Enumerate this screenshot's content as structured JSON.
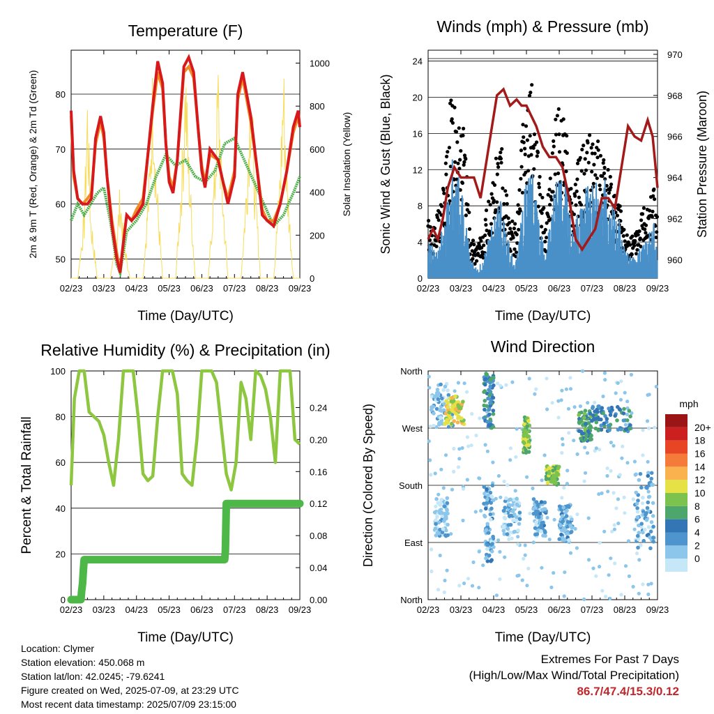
{
  "chart_data": [
    {
      "type": "line",
      "title": "Temperature (F)",
      "xlabel": "Time (Day/UTC)",
      "ylabel": "2m & 9m T (Red, Orange) & 2m Td (Green)",
      "y2label": "Solar Insolation (Yellow)",
      "x_ticks": [
        "02/23",
        "03/23",
        "04/23",
        "05/23",
        "06/23",
        "07/23",
        "08/23",
        "09/23"
      ],
      "y_ticks": [
        50,
        60,
        70,
        80
      ],
      "y2_ticks": [
        0,
        200,
        400,
        600,
        800,
        1000
      ],
      "xlim": [
        0,
        7
      ],
      "ylim": [
        46.5,
        88
      ],
      "y2lim": [
        0,
        1060
      ],
      "colors": {
        "t2m": "#d7191c",
        "t9m": "#f08a24",
        "td": "#4daf4a",
        "solar": "#f7dc5a"
      },
      "series": [
        {
          "key": "t2m",
          "x": [
            0,
            0.08,
            0.2,
            0.35,
            0.5,
            0.62,
            0.75,
            0.9,
            1.0,
            1.1,
            1.25,
            1.4,
            1.5,
            1.58,
            1.7,
            1.85,
            2.0,
            2.2,
            2.5,
            2.65,
            2.8,
            2.9,
            3.0,
            3.12,
            3.25,
            3.45,
            3.6,
            3.75,
            3.9,
            4.0,
            4.1,
            4.25,
            4.5,
            4.65,
            4.8,
            5.0,
            5.1,
            5.25,
            5.5,
            5.7,
            5.85,
            6.0,
            6.2,
            6.4,
            6.6,
            6.8,
            6.95,
            7.0
          ],
          "y": [
            77,
            66,
            61,
            60,
            60,
            61,
            72,
            76,
            73,
            65,
            56,
            50,
            47.5,
            52,
            58,
            57,
            58,
            60,
            78,
            86,
            82,
            71,
            64,
            62,
            68,
            85,
            86.7,
            84,
            73,
            66,
            63,
            70,
            68,
            64,
            60,
            65,
            80,
            84,
            76,
            66,
            58,
            57,
            56,
            60,
            66,
            74,
            77,
            74
          ]
        },
        {
          "key": "t9m",
          "x": [
            0,
            0.08,
            0.2,
            0.35,
            0.5,
            0.62,
            0.75,
            0.9,
            1.0,
            1.1,
            1.25,
            1.4,
            1.5,
            1.58,
            1.7,
            1.85,
            2.0,
            2.2,
            2.5,
            2.65,
            2.8,
            2.9,
            3.0,
            3.12,
            3.25,
            3.45,
            3.6,
            3.75,
            3.9,
            4.0,
            4.1,
            4.25,
            4.5,
            4.65,
            4.8,
            5.0,
            5.1,
            5.25,
            5.5,
            5.7,
            5.85,
            6.0,
            6.2,
            6.4,
            6.6,
            6.8,
            6.95,
            7.0
          ],
          "y": [
            76,
            65,
            61,
            60,
            61,
            62,
            71,
            75,
            72,
            65,
            57,
            51,
            48,
            52,
            58,
            57,
            59,
            61,
            77,
            84,
            81,
            71,
            65,
            63,
            68,
            84,
            85,
            83,
            73,
            67,
            64,
            69,
            68,
            64,
            61,
            66,
            79,
            83,
            75,
            66,
            59,
            57,
            57,
            60,
            66,
            73,
            76,
            74
          ]
        },
        {
          "key": "td",
          "x": [
            0,
            0.2,
            0.4,
            0.6,
            0.8,
            1.0,
            1.2,
            1.4,
            1.5,
            1.7,
            2.0,
            2.3,
            2.6,
            2.9,
            3.2,
            3.5,
            3.8,
            4.1,
            4.4,
            4.7,
            5.0,
            5.3,
            5.6,
            5.9,
            6.2,
            6.5,
            6.8,
            7.0
          ],
          "y": [
            57,
            60,
            58,
            60,
            62,
            63,
            57,
            49,
            47.5,
            55,
            57,
            60,
            65,
            69,
            67,
            68,
            65,
            64,
            66,
            71,
            72,
            68,
            64,
            60,
            56,
            58,
            62,
            65
          ]
        },
        {
          "key": "solar_insolation",
          "x": [
            0,
            0.2,
            0.4,
            0.5,
            0.6,
            0.8,
            1.2,
            1.4,
            1.5,
            1.6,
            1.8,
            2.2,
            2.4,
            2.5,
            2.6,
            2.8,
            3.2,
            3.4,
            3.5,
            3.6,
            3.8,
            4.2,
            4.4,
            4.5,
            4.6,
            4.8,
            5.2,
            5.4,
            5.5,
            5.6,
            5.8,
            6.2,
            6.4,
            6.5,
            6.6,
            6.8,
            7.0
          ],
          "y": [
            0,
            0,
            300,
            850,
            300,
            0,
            0,
            200,
            420,
            200,
            0,
            0,
            500,
            980,
            500,
            0,
            0,
            560,
            1000,
            560,
            0,
            0,
            520,
            960,
            520,
            0,
            0,
            540,
            1000,
            540,
            0,
            0,
            520,
            980,
            520,
            0,
            0
          ]
        }
      ]
    },
    {
      "type": "scatter",
      "title": "Winds (mph) & Pressure (mb)",
      "xlabel": "Time (Day/UTC)",
      "ylabel": "Sonic Wind & Gust (Blue, Black)",
      "y2label": "Station Pressure (Maroon)",
      "x_ticks": [
        "02/23",
        "03/23",
        "04/23",
        "05/23",
        "06/23",
        "07/23",
        "08/23",
        "09/23"
      ],
      "y_ticks": [
        0,
        4,
        8,
        12,
        16,
        20,
        24
      ],
      "y2_ticks": [
        960,
        962,
        964,
        966,
        968,
        970
      ],
      "xlim": [
        0,
        7
      ],
      "ylim": [
        0,
        25.2
      ],
      "y2lim": [
        959.1,
        970.2
      ],
      "colors": {
        "wind": "#4a90c8",
        "gust": "#000000",
        "pressure": "#a31a1a"
      },
      "series": [
        {
          "key": "wind_envelope",
          "x": [
            0,
            0.2,
            0.5,
            0.7,
            0.9,
            1.1,
            1.3,
            1.5,
            1.7,
            1.9,
            2.2,
            2.5,
            2.7,
            2.9,
            3.2,
            3.4,
            3.6,
            3.8,
            4.0,
            4.2,
            4.4,
            4.6,
            4.8,
            5.0,
            5.2,
            5.4,
            5.6,
            5.8,
            6.0,
            6.3,
            6.6,
            6.9,
            7.0
          ],
          "y": [
            4,
            3,
            6,
            12,
            14,
            8,
            2,
            1,
            2,
            5,
            8,
            3,
            2,
            9,
            11,
            6,
            3,
            8,
            12,
            10,
            5,
            7,
            9,
            10,
            11,
            10,
            8,
            7,
            3,
            2,
            4,
            6,
            4
          ]
        },
        {
          "key": "gust_envelope",
          "x": [
            0,
            0.2,
            0.5,
            0.7,
            0.9,
            1.1,
            1.3,
            1.5,
            1.7,
            1.9,
            2.2,
            2.5,
            2.7,
            2.9,
            3.2,
            3.4,
            3.6,
            3.8,
            4.0,
            4.2,
            4.4,
            4.6,
            4.8,
            5.0,
            5.2,
            5.4,
            5.6,
            5.8,
            6.0,
            6.3,
            6.6,
            6.9,
            7.0
          ],
          "y": [
            6,
            5,
            10,
            18,
            20,
            14,
            4,
            3,
            5,
            9,
            14,
            6,
            5,
            16,
            19,
            10,
            6,
            14,
            18,
            15,
            9,
            12,
            14,
            15,
            13,
            12,
            10,
            8,
            5,
            4,
            8,
            10,
            6
          ]
        },
        {
          "key": "pressure",
          "x": [
            0,
            0.15,
            0.3,
            0.45,
            0.6,
            0.8,
            1.0,
            1.2,
            1.4,
            1.6,
            1.75,
            1.9,
            2.1,
            2.3,
            2.5,
            2.7,
            2.85,
            3.0,
            3.15,
            3.3,
            3.5,
            3.7,
            3.9,
            4.1,
            4.3,
            4.5,
            4.7,
            4.9,
            5.1,
            5.3,
            5.5,
            5.7,
            5.9,
            6.1,
            6.3,
            6.5,
            6.7,
            6.85,
            7.0
          ],
          "y": [
            961,
            961.5,
            961,
            962,
            963.5,
            964.5,
            964,
            964,
            964,
            963,
            964.5,
            966,
            968,
            968.3,
            967.5,
            967.8,
            967.5,
            967.5,
            967,
            966.5,
            965.5,
            965,
            965,
            964.5,
            963,
            961,
            960.5,
            961,
            961.5,
            963,
            963,
            962.5,
            964.5,
            966.5,
            966,
            965.8,
            966.8,
            966,
            963.5
          ]
        }
      ]
    },
    {
      "type": "line",
      "title": "Relative Humidity (%) & Precipitation (in)",
      "xlabel": "Time (Day/UTC)",
      "ylabel": "Percent & Total Rainfall",
      "x_ticks": [
        "02/23",
        "03/23",
        "04/23",
        "05/23",
        "06/23",
        "07/23",
        "08/23",
        "09/23"
      ],
      "y_ticks": [
        0,
        20,
        40,
        60,
        80,
        100
      ],
      "y2_ticks": [
        "0.00",
        "0.04",
        "0.08",
        "0.12",
        "0.16",
        "0.20",
        "0.24"
      ],
      "xlim": [
        0,
        7
      ],
      "ylim": [
        0,
        100
      ],
      "y2lim": [
        0,
        0.2857
      ],
      "colors": {
        "rh": "#8dc63f",
        "precip": "#4db848"
      },
      "series": [
        {
          "key": "rh",
          "x": [
            0,
            0.1,
            0.25,
            0.4,
            0.55,
            0.7,
            0.85,
            1.0,
            1.15,
            1.3,
            1.45,
            1.6,
            1.75,
            1.9,
            2.05,
            2.2,
            2.35,
            2.5,
            2.65,
            2.8,
            2.95,
            3.1,
            3.25,
            3.4,
            3.55,
            3.7,
            3.85,
            4.0,
            4.15,
            4.3,
            4.45,
            4.6,
            4.75,
            4.9,
            5.05,
            5.2,
            5.35,
            5.5,
            5.65,
            5.8,
            5.95,
            6.1,
            6.25,
            6.4,
            6.55,
            6.7,
            6.85,
            7.0
          ],
          "y": [
            50,
            88,
            100,
            100,
            82,
            80,
            78,
            72,
            60,
            50,
            70,
            100,
            100,
            100,
            80,
            55,
            52,
            54,
            80,
            100,
            100,
            100,
            90,
            55,
            52,
            50,
            70,
            100,
            100,
            100,
            95,
            75,
            55,
            48,
            60,
            95,
            88,
            70,
            100,
            98,
            92,
            80,
            60,
            100,
            100,
            100,
            70,
            68
          ]
        },
        {
          "key": "precip_total",
          "x": [
            0,
            0.3,
            0.32,
            0.35,
            0.38,
            0.4,
            0.45,
            1.0,
            2.0,
            3.0,
            4.0,
            4.5,
            4.7,
            4.72,
            4.75,
            5.0,
            6.0,
            7.0
          ],
          "y": [
            0,
            0,
            0.01,
            0.02,
            0.04,
            0.05,
            0.05,
            0.05,
            0.05,
            0.05,
            0.05,
            0.05,
            0.05,
            0.06,
            0.12,
            0.12,
            0.12,
            0.12
          ]
        }
      ]
    },
    {
      "type": "scatter",
      "title": "Wind Direction",
      "xlabel": "Time (Day/UTC)",
      "ylabel": "Direction (Colored By Speed)",
      "x_ticks": [
        "02/23",
        "03/23",
        "04/23",
        "05/23",
        "06/23",
        "07/23",
        "08/23",
        "09/23"
      ],
      "y_ticks": [
        "North",
        "East",
        "South",
        "West",
        "North"
      ],
      "xlim": [
        0,
        7
      ],
      "ylim": [
        0,
        360
      ],
      "colorbar_unit": "mph",
      "colorbar_labels": [
        "0",
        "2",
        "4",
        "6",
        "8",
        "10",
        "12",
        "14",
        "16",
        "18",
        "20+"
      ],
      "colorbar_colors": [
        "#c6e7f7",
        "#8cc6ea",
        "#4d95cc",
        "#3476b5",
        "#4da66b",
        "#7cc24f",
        "#e6e245",
        "#f9b24e",
        "#f47b39",
        "#e84525",
        "#cc1f1f",
        "#9b1516"
      ],
      "clusters": [
        {
          "x": [
            0.1,
            0.8
          ],
          "dir": [
            270,
            340
          ],
          "speed": 2
        },
        {
          "x": [
            0.5,
            1.1
          ],
          "dir": [
            275,
            320
          ],
          "speed": 12
        },
        {
          "x": [
            1.7,
            2.0
          ],
          "dir": [
            270,
            360
          ],
          "speed": 6
        },
        {
          "x": [
            2.9,
            3.1
          ],
          "dir": [
            230,
            290
          ],
          "speed": 10
        },
        {
          "x": [
            3.6,
            4.0
          ],
          "dir": [
            180,
            210
          ],
          "speed": 10
        },
        {
          "x": [
            4.6,
            5.0
          ],
          "dir": [
            250,
            300
          ],
          "speed": 8
        },
        {
          "x": [
            5.0,
            6.2
          ],
          "dir": [
            265,
            305
          ],
          "speed": 6
        },
        {
          "x": [
            0.2,
            0.6
          ],
          "dir": [
            100,
            160
          ],
          "speed": 2
        },
        {
          "x": [
            1.7,
            2.0
          ],
          "dir": [
            60,
            180
          ],
          "speed": 3
        },
        {
          "x": [
            2.3,
            2.8
          ],
          "dir": [
            100,
            160
          ],
          "speed": 2
        },
        {
          "x": [
            3.2,
            3.6
          ],
          "dir": [
            100,
            160
          ],
          "speed": 3
        },
        {
          "x": [
            4.0,
            4.4
          ],
          "dir": [
            90,
            150
          ],
          "speed": 3
        },
        {
          "x": [
            6.3,
            6.9
          ],
          "dir": [
            80,
            200
          ],
          "speed": 3
        }
      ]
    }
  ],
  "info": {
    "location": "Location: Clymer",
    "elevation": "Station elevation: 450.068 m",
    "latlon": "Station lat/lon: 42.0245; -79.6241",
    "created": "Figure created on Wed, 2025-07-09, at 23:29 UTC",
    "recent": "Most recent data timestamp: 2025/07/09 23:15:00"
  },
  "extremes": {
    "title": "Extremes For Past 7 Days",
    "subtitle": "(High/Low/Max Wind/Total Precipitation)",
    "value": "86.7/47.4/15.3/0.12",
    "value_color": "#c0272d"
  }
}
